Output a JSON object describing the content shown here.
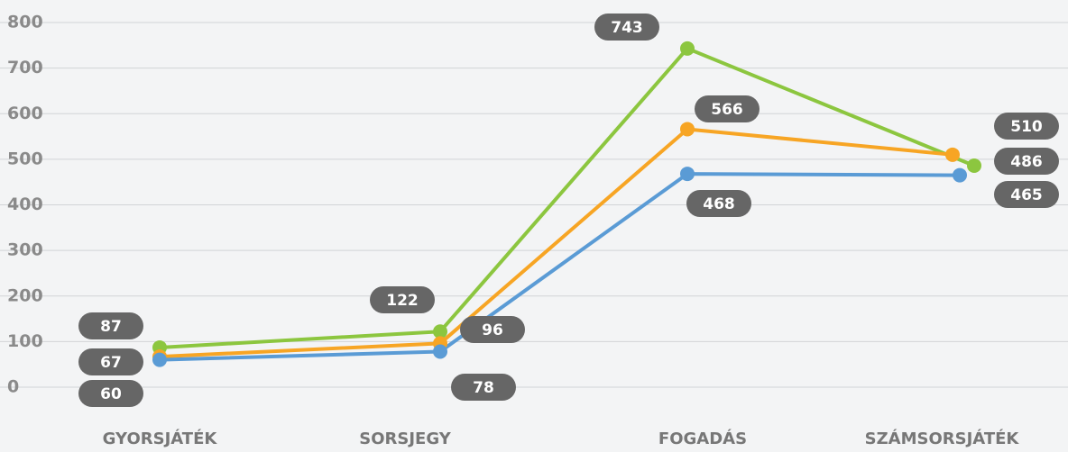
{
  "chart_data": {
    "type": "line",
    "categories": [
      "GYORSJÁTÉK",
      "SORSJEGY",
      "FOGADÁS",
      "SZÁMSORSJÁTÉK"
    ],
    "series": [
      {
        "name": "green",
        "color": "#8cc63f",
        "values": [
          87,
          122,
          743,
          486
        ]
      },
      {
        "name": "orange",
        "color": "#f7a524",
        "values": [
          67,
          96,
          566,
          510
        ]
      },
      {
        "name": "blue",
        "color": "#5a9bd5",
        "values": [
          60,
          78,
          468,
          465
        ]
      }
    ],
    "ylim": [
      0,
      800
    ],
    "yticks": [
      0,
      100,
      200,
      300,
      400,
      500,
      600,
      700,
      800
    ],
    "grid": true
  }
}
